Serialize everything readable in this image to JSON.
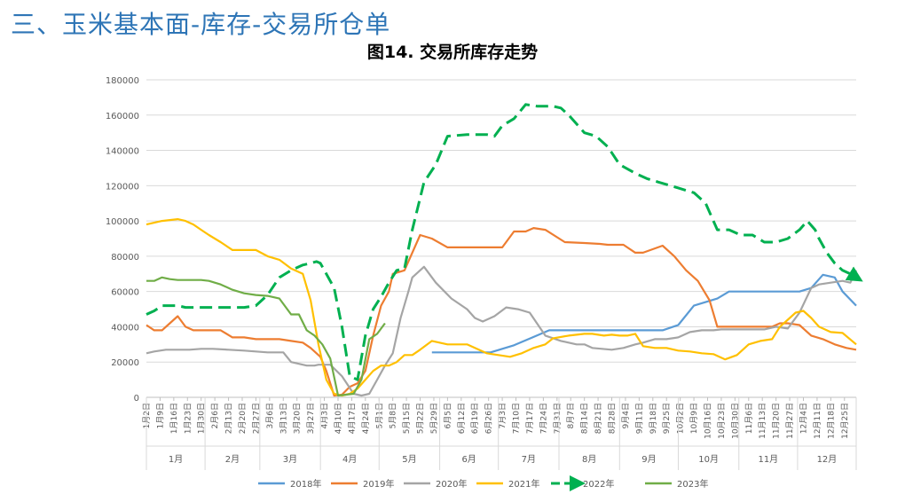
{
  "page": {
    "slide_title": "三、玉米基本面-库存-交易所仓单"
  },
  "chart_data": {
    "type": "line",
    "title": "图14. 交易所库存走势",
    "ylim": [
      0,
      180000
    ],
    "yticks": [
      0,
      20000,
      40000,
      60000,
      80000,
      100000,
      120000,
      140000,
      160000,
      180000
    ],
    "x_range_days": [
      2,
      365
    ],
    "date_ticks": [
      "1月2日",
      "1月9日",
      "1月16日",
      "1月23日",
      "1月30日",
      "2月6日",
      "2月13日",
      "2月20日",
      "2月27日",
      "3月6日",
      "3月13日",
      "3月20日",
      "3月27日",
      "4月3日",
      "4月10日",
      "4月17日",
      "4月24日",
      "5月1日",
      "5月8日",
      "5月15日",
      "5月22日",
      "5月29日",
      "6月5日",
      "6月12日",
      "6月19日",
      "6月26日",
      "7月3日",
      "7月10日",
      "7月17日",
      "7月24日",
      "7月31日",
      "8月7日",
      "8月14日",
      "8月21日",
      "8月28日",
      "9月4日",
      "9月11日",
      "9月18日",
      "9月25日",
      "10月2日",
      "10月9日",
      "10月16日",
      "10月23日",
      "10月30日",
      "11月6日",
      "11月13日",
      "11月20日",
      "11月27日",
      "12月4日",
      "12月11日",
      "12月18日",
      "12月25日"
    ],
    "months": [
      "1月",
      "2月",
      "3月",
      "4月",
      "5月",
      "6月",
      "7月",
      "8月",
      "9月",
      "10月",
      "11月",
      "12月"
    ],
    "legend_position": "bottom",
    "series": [
      {
        "name": "2018年",
        "color": "#5B9BD5",
        "dash": false,
        "x": [
          148,
          178,
          190,
          208,
          222,
          234,
          246,
          258,
          266,
          274,
          282,
          294,
          300,
          306,
          312,
          318,
          324,
          330,
          336,
          342,
          348,
          354,
          358,
          365
        ],
        "y": [
          25500,
          25500,
          29500,
          38000,
          38000,
          38000,
          38000,
          38000,
          38000,
          41000,
          52000,
          56000,
          60000,
          60000,
          60000,
          60000,
          60000,
          60000,
          60000,
          62000,
          69500,
          68000,
          60000,
          52000
        ]
      },
      {
        "name": "2019年",
        "color": "#ED7D31",
        "dash": false,
        "x": [
          2,
          6,
          10,
          14,
          18,
          22,
          26,
          30,
          34,
          40,
          46,
          52,
          58,
          64,
          70,
          76,
          82,
          86,
          89,
          91,
          94,
          98,
          102,
          106,
          110,
          114,
          118,
          122,
          126,
          128,
          134,
          142,
          148,
          156,
          166,
          176,
          180,
          184,
          190,
          196,
          200,
          206,
          216,
          226,
          234,
          238,
          246,
          252,
          256,
          266,
          272,
          278,
          284,
          290,
          294,
          300,
          306,
          312,
          318,
          322,
          326,
          330,
          336,
          342,
          348,
          354,
          360,
          365
        ],
        "y": [
          41000,
          38000,
          38000,
          42000,
          46000,
          40000,
          38000,
          38000,
          38000,
          38000,
          34000,
          34000,
          33000,
          33000,
          33000,
          32000,
          31000,
          28000,
          25000,
          23000,
          15000,
          1000,
          1500,
          6000,
          8000,
          15000,
          35000,
          52000,
          60000,
          70000,
          72000,
          92000,
          90000,
          85000,
          85000,
          85000,
          85000,
          85000,
          94000,
          94000,
          96000,
          95000,
          88000,
          87500,
          87000,
          86500,
          86500,
          82000,
          82000,
          86000,
          80000,
          72000,
          66000,
          55000,
          40000,
          40000,
          40000,
          40000,
          40000,
          40000,
          42000,
          42000,
          41000,
          35000,
          33000,
          30000,
          28000,
          27000
        ]
      },
      {
        "name": "2020年",
        "color": "#A5A5A5",
        "dash": false,
        "x": [
          2,
          6,
          12,
          18,
          24,
          30,
          36,
          44,
          52,
          58,
          64,
          68,
          72,
          76,
          80,
          84,
          88,
          90,
          92,
          96,
          102,
          108,
          112,
          116,
          120,
          124,
          128,
          132,
          136,
          138,
          144,
          150,
          158,
          166,
          170,
          174,
          180,
          186,
          192,
          198,
          206,
          214,
          222,
          226,
          230,
          240,
          246,
          252,
          256,
          262,
          268,
          274,
          280,
          286,
          292,
          296,
          300,
          306,
          312,
          318,
          324,
          330,
          336,
          342,
          346,
          352,
          358,
          362,
          365
        ],
        "y": [
          25000,
          26000,
          27000,
          27000,
          27000,
          27500,
          27500,
          27000,
          26500,
          26000,
          25500,
          25500,
          25500,
          20000,
          19000,
          18000,
          18000,
          18500,
          18500,
          18500,
          12000,
          2000,
          1000,
          2000,
          10000,
          18000,
          25000,
          45000,
          60000,
          68000,
          74000,
          65000,
          56000,
          50000,
          45000,
          43000,
          46000,
          51000,
          50000,
          48000,
          35000,
          32000,
          30000,
          30000,
          28000,
          27000,
          28000,
          30000,
          31000,
          33000,
          33000,
          34000,
          37000,
          38000,
          38000,
          38500,
          38500,
          38500,
          38500,
          38500,
          40000,
          39000,
          48000,
          62000,
          64000,
          65000,
          66000,
          65000,
          72000
        ]
      },
      {
        "name": "2021年",
        "color": "#FFC000",
        "dash": false,
        "x": [
          2,
          6,
          10,
          14,
          18,
          22,
          26,
          30,
          34,
          40,
          46,
          52,
          58,
          64,
          70,
          76,
          82,
          86,
          90,
          94,
          98,
          102,
          106,
          110,
          114,
          118,
          122,
          126,
          130,
          134,
          138,
          142,
          148,
          156,
          166,
          176,
          182,
          188,
          194,
          200,
          206,
          210,
          218,
          226,
          230,
          236,
          240,
          244,
          248,
          252,
          256,
          262,
          268,
          274,
          280,
          286,
          292,
          298,
          304,
          310,
          316,
          322,
          326,
          330,
          334,
          338,
          342,
          346,
          352,
          358,
          365
        ],
        "y": [
          98000,
          99000,
          100000,
          100500,
          101000,
          100000,
          98000,
          95000,
          92000,
          88000,
          83500,
          83500,
          83500,
          80000,
          78000,
          73000,
          70000,
          55000,
          30000,
          10000,
          2000,
          1000,
          2000,
          5000,
          10000,
          15000,
          18000,
          18000,
          20000,
          24000,
          24000,
          27000,
          32000,
          30000,
          30000,
          25000,
          24000,
          23000,
          25000,
          28000,
          30000,
          33500,
          35000,
          36000,
          36000,
          35000,
          35500,
          35000,
          35000,
          36000,
          29000,
          28000,
          28000,
          26500,
          26000,
          25000,
          24500,
          21500,
          24000,
          30000,
          32000,
          33000,
          40000,
          44000,
          48000,
          49000,
          45000,
          40000,
          37000,
          36500,
          30000
        ]
      },
      {
        "name": "2022年",
        "color": "#00B050",
        "dash": true,
        "x": [
          2,
          6,
          10,
          14,
          18,
          22,
          26,
          30,
          34,
          40,
          46,
          52,
          58,
          64,
          70,
          76,
          82,
          86,
          89,
          91,
          94,
          98,
          102,
          106,
          110,
          114,
          118,
          122,
          126,
          130,
          134,
          138,
          144,
          150,
          156,
          166,
          176,
          180,
          184,
          190,
          196,
          202,
          206,
          210,
          214,
          218,
          226,
          232,
          238,
          244,
          252,
          258,
          264,
          270,
          276,
          282,
          288,
          294,
          300,
          306,
          312,
          318,
          324,
          330,
          336,
          340,
          344,
          346,
          350,
          354,
          358,
          362,
          365
        ],
        "y": [
          47000,
          49000,
          52000,
          52000,
          52000,
          51000,
          51000,
          51000,
          51000,
          51000,
          51000,
          51000,
          52000,
          58000,
          68000,
          72000,
          75000,
          76000,
          77000,
          76000,
          70000,
          62000,
          40000,
          12000,
          10000,
          35000,
          50000,
          57000,
          65000,
          72000,
          73000,
          95000,
          122000,
          132000,
          148000,
          149000,
          149000,
          148000,
          154000,
          158000,
          166000,
          165000,
          165000,
          165000,
          164000,
          160000,
          150000,
          148000,
          142000,
          132000,
          127000,
          124000,
          122000,
          120000,
          118000,
          116000,
          110000,
          95000,
          95000,
          92000,
          92000,
          88000,
          88000,
          90000,
          95000,
          100000,
          95000,
          90000,
          82000,
          76000,
          72000,
          70000,
          68000
        ]
      },
      {
        "name": "2023年",
        "color": "#70AD47",
        "dash": false,
        "x": [
          2,
          6,
          10,
          14,
          18,
          22,
          26,
          30,
          34,
          40,
          46,
          52,
          58,
          64,
          70,
          76,
          80,
          84,
          88,
          92,
          96,
          100,
          104,
          108,
          112,
          116,
          120,
          124
        ],
        "y": [
          66000,
          66000,
          68000,
          67000,
          66500,
          66500,
          66500,
          66500,
          66000,
          64000,
          61000,
          59000,
          58000,
          57500,
          56000,
          47000,
          47000,
          38000,
          35000,
          30000,
          22000,
          1000,
          1500,
          2000,
          10000,
          33000,
          36000,
          42000
        ]
      }
    ]
  }
}
